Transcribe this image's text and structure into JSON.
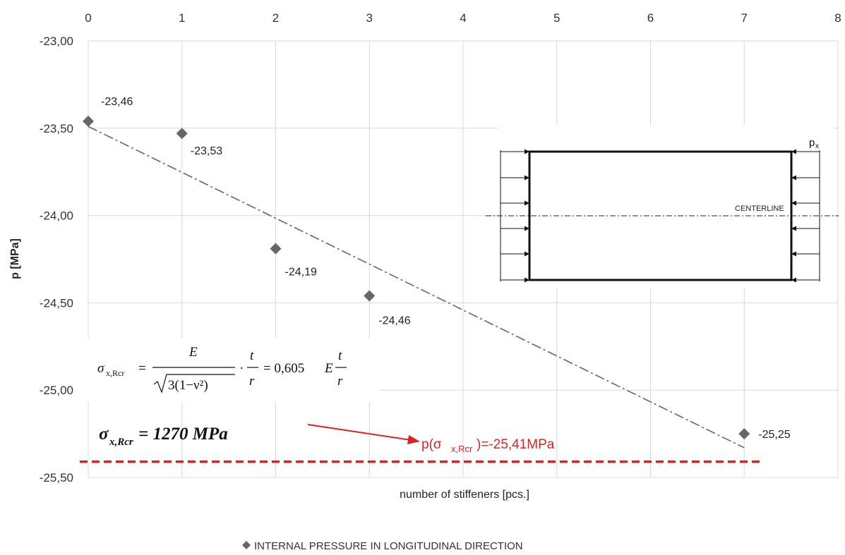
{
  "chart_data": {
    "type": "scatter",
    "series": [
      {
        "name": "INTERNAL PRESSURE IN LONGITUDINAL DIRECTION",
        "x": [
          0,
          1,
          2,
          3,
          7
        ],
        "y": [
          -23.46,
          -23.53,
          -24.19,
          -24.46,
          -25.25
        ],
        "labels": [
          "-23,46",
          "-23,53",
          "-24,19",
          "-24,46",
          "-25,25"
        ],
        "marker": "diamond",
        "color": "#666666"
      }
    ],
    "trendline": {
      "style": "dash-dot",
      "color": "#666666",
      "y_at_x0": -23.49,
      "y_at_x7": -25.33
    },
    "xlim": [
      0,
      8
    ],
    "ylim": [
      -25.5,
      -23.0
    ],
    "x_ticks": [
      "0",
      "1",
      "2",
      "3",
      "4",
      "5",
      "6",
      "7",
      "8"
    ],
    "y_ticks": [
      "-23,00",
      "-23,50",
      "-24,00",
      "-24,50",
      "-25,00",
      "-25,50"
    ],
    "x_axis_position": "top",
    "xlabel": "number of stiffeners [pcs.]",
    "ylabel": "p [MPa]",
    "grid": true,
    "legend_position": "bottom",
    "reference_line": {
      "y": -25.41,
      "color": "#e02020",
      "style": "dashed"
    },
    "annotations": {
      "sigma_value": "σx,Rcr = 1270 MPa",
      "pressure_result": "p(σx,Rcr)=-25,41MPa",
      "pressure_result_color": "#e02020",
      "formula": "σx,Rcr = E / √(3(1−ν²)) · t/r = 0,605E t/r",
      "diagram_load_label": "px",
      "diagram_centerline_label": "CENTERLINE"
    }
  },
  "formula_parts": {
    "sigma": "σ",
    "sub": "x,Rcr",
    "eq1": "=",
    "numE": "E",
    "den": "3(1−ν²)",
    "dot": "·",
    "t": "t",
    "r": "r",
    "eq2": "= 0,605",
    "E2": "E",
    "t2": "t",
    "r2": "r"
  },
  "big_sigma_parts": {
    "sigma": "σ",
    "sub": "x,Rcr",
    "rest": " = 1270 MPa"
  },
  "red_label_parts": {
    "pre": "p(σ",
    "sub": "x,Rcr",
    "post": ")=-25,41MPa"
  },
  "diagram_parts": {
    "p": "p",
    "sub": "x",
    "centerline": "CENTERLINE"
  }
}
